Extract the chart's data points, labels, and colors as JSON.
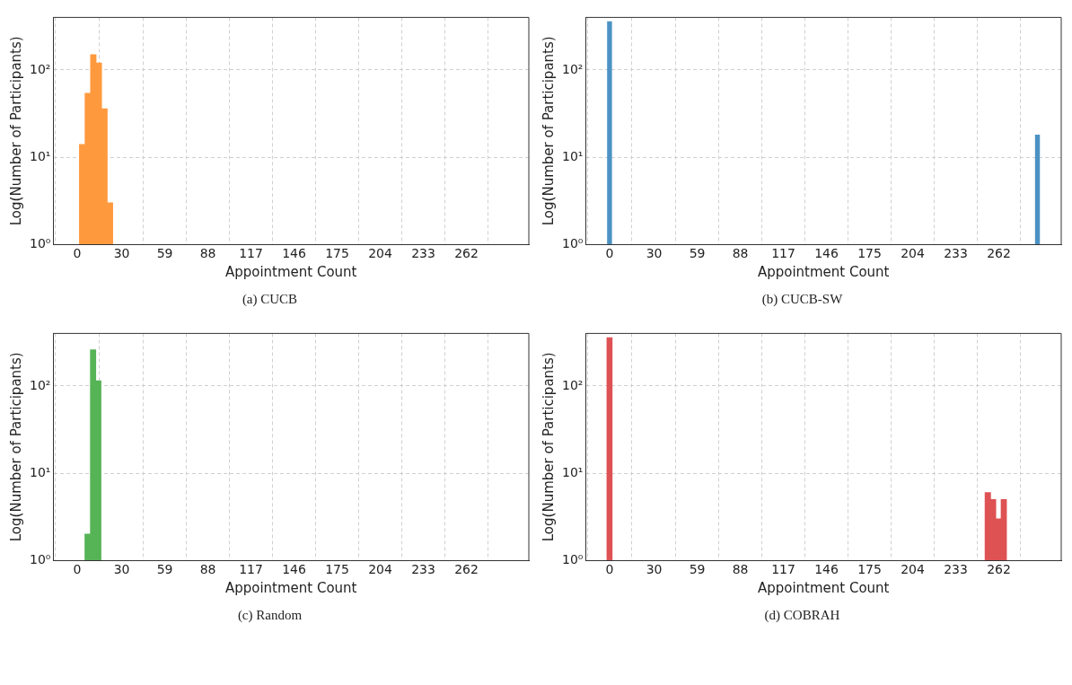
{
  "chart_data": [
    {
      "type": "histogram",
      "title": "(a) CUCB",
      "xlabel": "Appointment Count",
      "ylabel": "Log(Number of Participants)",
      "bins": [
        1.5,
        5.3,
        9,
        12.8,
        16.5,
        20.3,
        24
      ],
      "values": [
        14,
        54,
        150,
        120,
        36,
        3
      ],
      "color": "#ff993e",
      "log": true,
      "grid": true,
      "xlim": [
        -16,
        304
      ],
      "xticks": [
        0,
        30,
        59,
        88,
        117,
        146,
        175,
        204,
        233,
        262
      ],
      "ylim": [
        1,
        400
      ],
      "yticks": [
        {
          "value": 1,
          "label": "10⁰"
        },
        {
          "value": 10,
          "label": "10¹"
        },
        {
          "value": 100,
          "label": "10²"
        }
      ]
    },
    {
      "type": "histogram",
      "title": "(b) CUCB-SW",
      "xlabel": "Appointment Count",
      "ylabel": "Log(Number of Participants)",
      "bins": [
        -1.44,
        1.44,
        286.56,
        289.44
      ],
      "values": [
        359,
        null,
        18
      ],
      "color": "#4c92c3",
      "log": true,
      "grid": true,
      "xlim": [
        -16,
        304
      ],
      "xticks": [
        0,
        30,
        59,
        88,
        117,
        146,
        175,
        204,
        233,
        262
      ],
      "ylim": [
        1,
        400
      ],
      "yticks": [
        {
          "value": 1,
          "label": "10⁰"
        },
        {
          "value": 10,
          "label": "10¹"
        },
        {
          "value": 100,
          "label": "10²"
        }
      ]
    },
    {
      "type": "histogram",
      "title": "(c) Random",
      "xlabel": "Appointment Count",
      "ylabel": "Log(Number of Participants)",
      "bins": [
        5.2,
        8.9,
        12.6,
        16.1
      ],
      "values": [
        2,
        260,
        115
      ],
      "color": "#56b356",
      "log": true,
      "grid": true,
      "xlim": [
        -16,
        304
      ],
      "xticks": [
        0,
        30,
        59,
        88,
        117,
        146,
        175,
        204,
        233,
        262
      ],
      "ylim": [
        1,
        400
      ],
      "yticks": [
        {
          "value": 1,
          "label": "10⁰"
        },
        {
          "value": 10,
          "label": "10¹"
        },
        {
          "value": 100,
          "label": "10²"
        }
      ]
    },
    {
      "type": "histogram",
      "title": "(d) COBRAH",
      "xlabel": "Appointment Count",
      "ylabel": "Log(Number of Participants)",
      "bins": [
        -1.8,
        1.8,
        252.7,
        256.5,
        260,
        263.5,
        267.2
      ],
      "values": [
        358,
        null,
        6,
        5,
        3,
        5
      ],
      "color": "#de5253",
      "log": true,
      "grid": true,
      "xlim": [
        -16,
        304
      ],
      "xticks": [
        0,
        30,
        59,
        88,
        117,
        146,
        175,
        204,
        233,
        262
      ],
      "ylim": [
        1,
        400
      ],
      "yticks": [
        {
          "value": 1,
          "label": "10⁰"
        },
        {
          "value": 10,
          "label": "10¹"
        },
        {
          "value": 100,
          "label": "10²"
        }
      ]
    }
  ]
}
